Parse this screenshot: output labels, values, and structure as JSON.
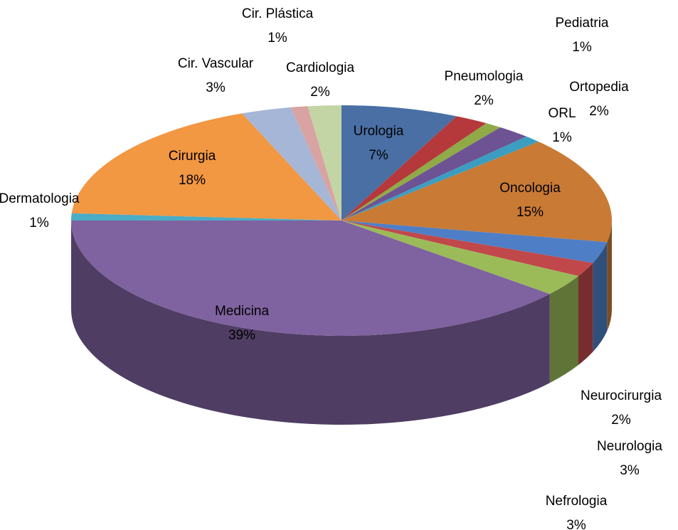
{
  "chart_data": {
    "type": "pie3d",
    "categories": [
      "Urologia",
      "Pneumologia",
      "Pediatria",
      "Ortopedia",
      "ORL",
      "Oncologia",
      "Neurologia",
      "Neurocirurgia",
      "Nefrologia",
      "Medicina",
      "Dermatologia",
      "Cirurgia",
      "Cir. Vascular",
      "Cir. Plástica",
      "Cardiologia"
    ],
    "values": [
      7,
      2,
      1,
      2,
      1,
      15,
      3,
      2,
      3,
      39,
      1,
      18,
      3,
      1,
      2
    ],
    "value_labels": [
      "7%",
      "2%",
      "1%",
      "2%",
      "1%",
      "15%",
      "3%",
      "2%",
      "3%",
      "39%",
      "1%",
      "18%",
      "3%",
      "1%",
      "2%"
    ],
    "colors": [
      "#4a6fa5",
      "#b5393a",
      "#8faa47",
      "#6d5393",
      "#3b9ec0",
      "#c97a35",
      "#4e7fc6",
      "#c0484a",
      "#9bbb59",
      "#7f62a0",
      "#4bacc6",
      "#f29742",
      "#a6b6d6",
      "#d8a3a2",
      "#c3d5a4"
    ]
  }
}
